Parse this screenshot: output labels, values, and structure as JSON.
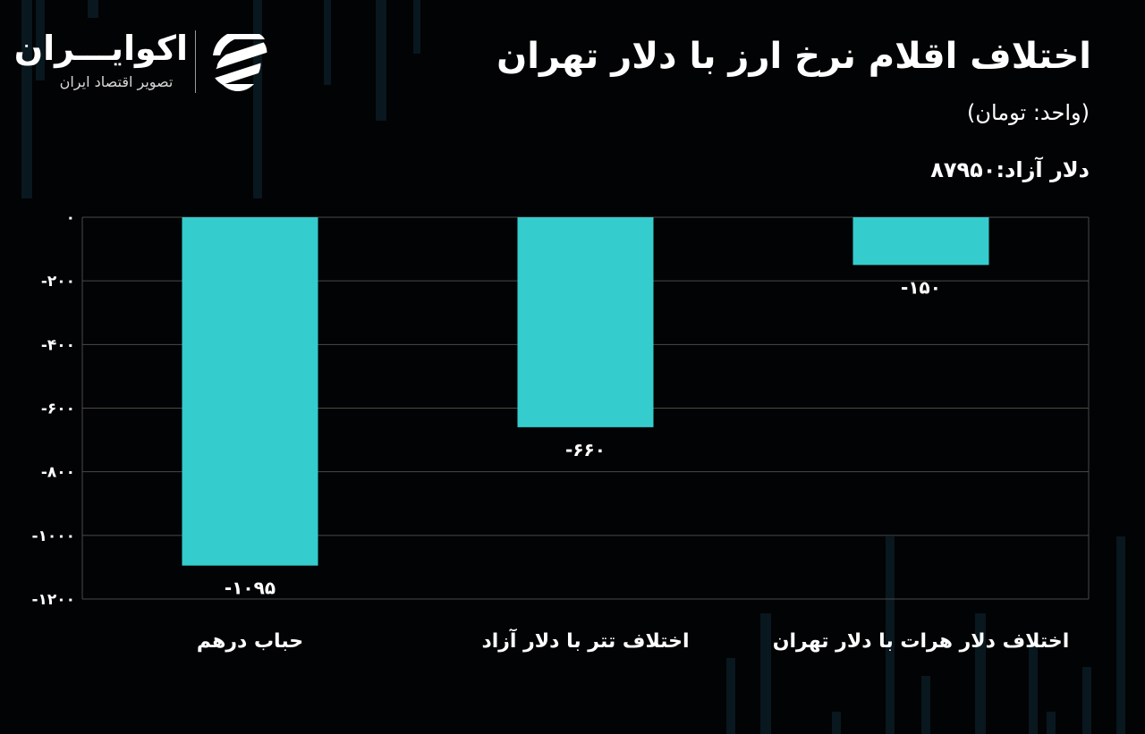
{
  "header": {
    "title": "اختلاف اقلام نرخ ارز با دلار تهران",
    "unit": "(واحد: تومان)",
    "free_dollar_rate": "دلار آزاد:۸۷۹۵۰"
  },
  "logo": {
    "name": "اکوایـــران",
    "tagline": "تصویر اقتصاد ایران",
    "mark_icon": "ecoiran-stripes-icon"
  },
  "colors": {
    "background": "#020304",
    "bar": "#35cccd",
    "grid": "#4a4a4a",
    "text": "#ffffff"
  },
  "chart_data": {
    "type": "bar",
    "categories": [
      "حباب درهم",
      "اختلاف تتر با دلار آزاد",
      "اختلاف دلار هرات با دلار تهران"
    ],
    "values": [
      -1095,
      -660,
      -150
    ],
    "value_labels": [
      "-۱۰۹۵",
      "-۶۶۰",
      "-۱۵۰"
    ],
    "ylim": [
      -1200,
      0
    ],
    "yticks": [
      0,
      -200,
      -400,
      -600,
      -800,
      -1000,
      -1200
    ],
    "ytick_labels": [
      "۰",
      "-۲۰۰",
      "-۴۰۰",
      "-۶۰۰",
      "-۸۰۰",
      "-۱۰۰۰",
      "-۱۲۰۰"
    ],
    "grid": true,
    "legend": "none"
  }
}
